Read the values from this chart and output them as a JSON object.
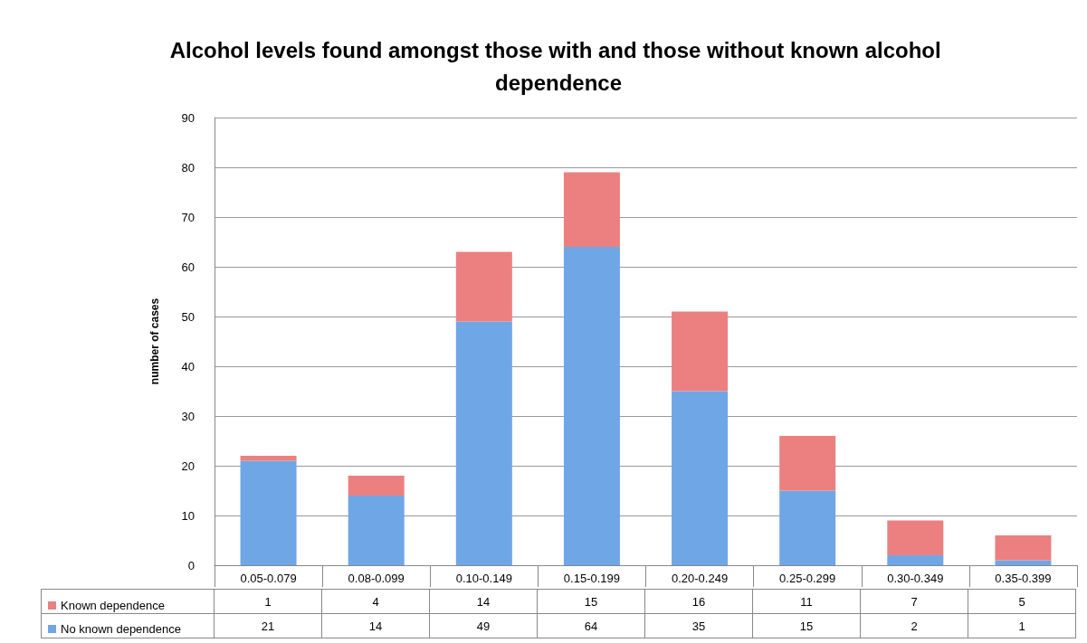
{
  "chart_data": {
    "type": "bar",
    "title": "Alcohol levels found amongst those with and those without known alcohol dependence",
    "ylabel": "number of cases",
    "categories": [
      "0.05-0.079",
      "0.08-0.099",
      "0.10-0.149",
      "0.15-0.199",
      "0.20-0.249",
      "0.25-0.299",
      "0.30-0.349",
      "0.35-0.399"
    ],
    "series": [
      {
        "name": "No known dependence",
        "color": "#6fa6e6",
        "values": [
          21,
          14,
          49,
          64,
          35,
          15,
          2,
          1
        ]
      },
      {
        "name": "Known dependence",
        "color": "#ec8080",
        "values": [
          1,
          4,
          14,
          15,
          16,
          11,
          7,
          5
        ]
      }
    ],
    "stacked": true,
    "ylim": [
      0,
      90
    ],
    "yticks": [
      0,
      10,
      20,
      30,
      40,
      50,
      60,
      70,
      80,
      90
    ],
    "grid": "y",
    "legend": "bottom",
    "data_labels": true
  }
}
